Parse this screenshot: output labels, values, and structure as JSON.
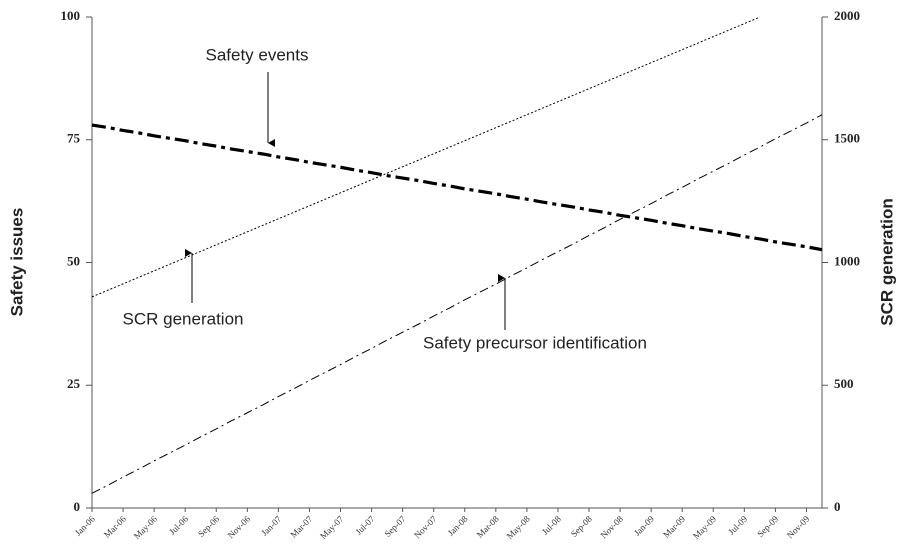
{
  "chart_data": {
    "type": "line",
    "y_label": "Safety issues",
    "y2_label": "SCR generation",
    "categories": [
      "Jan-06",
      null,
      "Mar-06",
      null,
      "May-06",
      null,
      "Jul-06",
      null,
      "Sep-06",
      null,
      "Nov-06",
      null,
      "Jan-07",
      null,
      "Mar-07",
      null,
      "May-07",
      null,
      "Jul-07",
      null,
      "Sep-07",
      null,
      "Nov-07",
      null,
      "Jan-08",
      null,
      "Mar-08",
      null,
      "May-08",
      null,
      "Jul-08",
      null,
      "Sep-08",
      null,
      "Nov-08",
      null,
      "Jan-09",
      null,
      "Mar-09",
      null,
      "May-09",
      null,
      "Jul-09",
      null,
      "Sep-09",
      null,
      "Nov-09",
      null
    ],
    "ylim": [
      0,
      100
    ],
    "yticks": [
      0,
      25,
      50,
      75,
      100
    ],
    "y2lim": [
      0,
      2000
    ],
    "y2ticks": [
      0,
      500,
      1000,
      1500,
      2000
    ],
    "series": [
      {
        "name": "Safety events",
        "color": "#000000",
        "linestyle": "bold-dash-dot",
        "values": [
          78.0,
          77.5,
          76.9,
          76.4,
          75.8,
          75.3,
          74.8,
          74.2,
          73.7,
          73.1,
          72.6,
          72.1,
          71.5,
          71.0,
          70.4,
          69.9,
          69.4,
          68.8,
          68.3,
          67.7,
          67.2,
          66.7,
          66.1,
          65.6,
          65.0,
          64.5,
          64.0,
          63.4,
          62.9,
          62.3,
          61.8,
          61.3,
          60.7,
          60.2,
          59.6,
          59.1,
          58.6,
          58.0,
          57.5,
          56.9,
          56.4,
          55.9,
          55.3,
          54.8,
          54.2,
          53.7,
          53.2,
          52.6
        ]
      },
      {
        "name": "SCR generation",
        "color": "#000000",
        "linestyle": "dotted",
        "axis": "y2",
        "values": [
          860,
          886.5,
          913,
          939.5,
          966,
          992.5,
          1019,
          1045.5,
          1072,
          1098.5,
          1125,
          1151.5,
          1178,
          1204.5,
          1231,
          1257.5,
          1284,
          1310.5,
          1337,
          1363.5,
          1390,
          1416.5,
          1443,
          1469.5,
          1496,
          1522.5,
          1549,
          1575.5,
          1602,
          1628.5,
          1655,
          1681.5,
          1708,
          1734.5,
          1761,
          1787.5,
          1814,
          1840.5,
          1867,
          1893.5,
          1920,
          1946.5,
          1973,
          1999.5,
          null,
          null,
          null,
          null
        ]
      },
      {
        "name": "Safety precursor identification",
        "color": "#000000",
        "linestyle": "dash-dot",
        "values": [
          3.0,
          4.6,
          6.3,
          7.9,
          9.6,
          11.2,
          12.8,
          14.5,
          16.1,
          17.8,
          19.4,
          21.0,
          22.7,
          24.3,
          26.0,
          27.6,
          29.2,
          30.9,
          32.5,
          34.2,
          35.8,
          37.4,
          39.1,
          40.7,
          42.4,
          44.0,
          45.6,
          47.3,
          48.9,
          50.6,
          52.2,
          53.8,
          55.5,
          57.1,
          58.8,
          60.4,
          62.0,
          63.7,
          65.3,
          67.0,
          68.6,
          70.2,
          71.9,
          73.5,
          75.2,
          76.8,
          78.4,
          80.1
        ]
      }
    ],
    "annotations": [
      "Safety events",
      "SCR generation",
      "Safety precursor identification"
    ]
  }
}
